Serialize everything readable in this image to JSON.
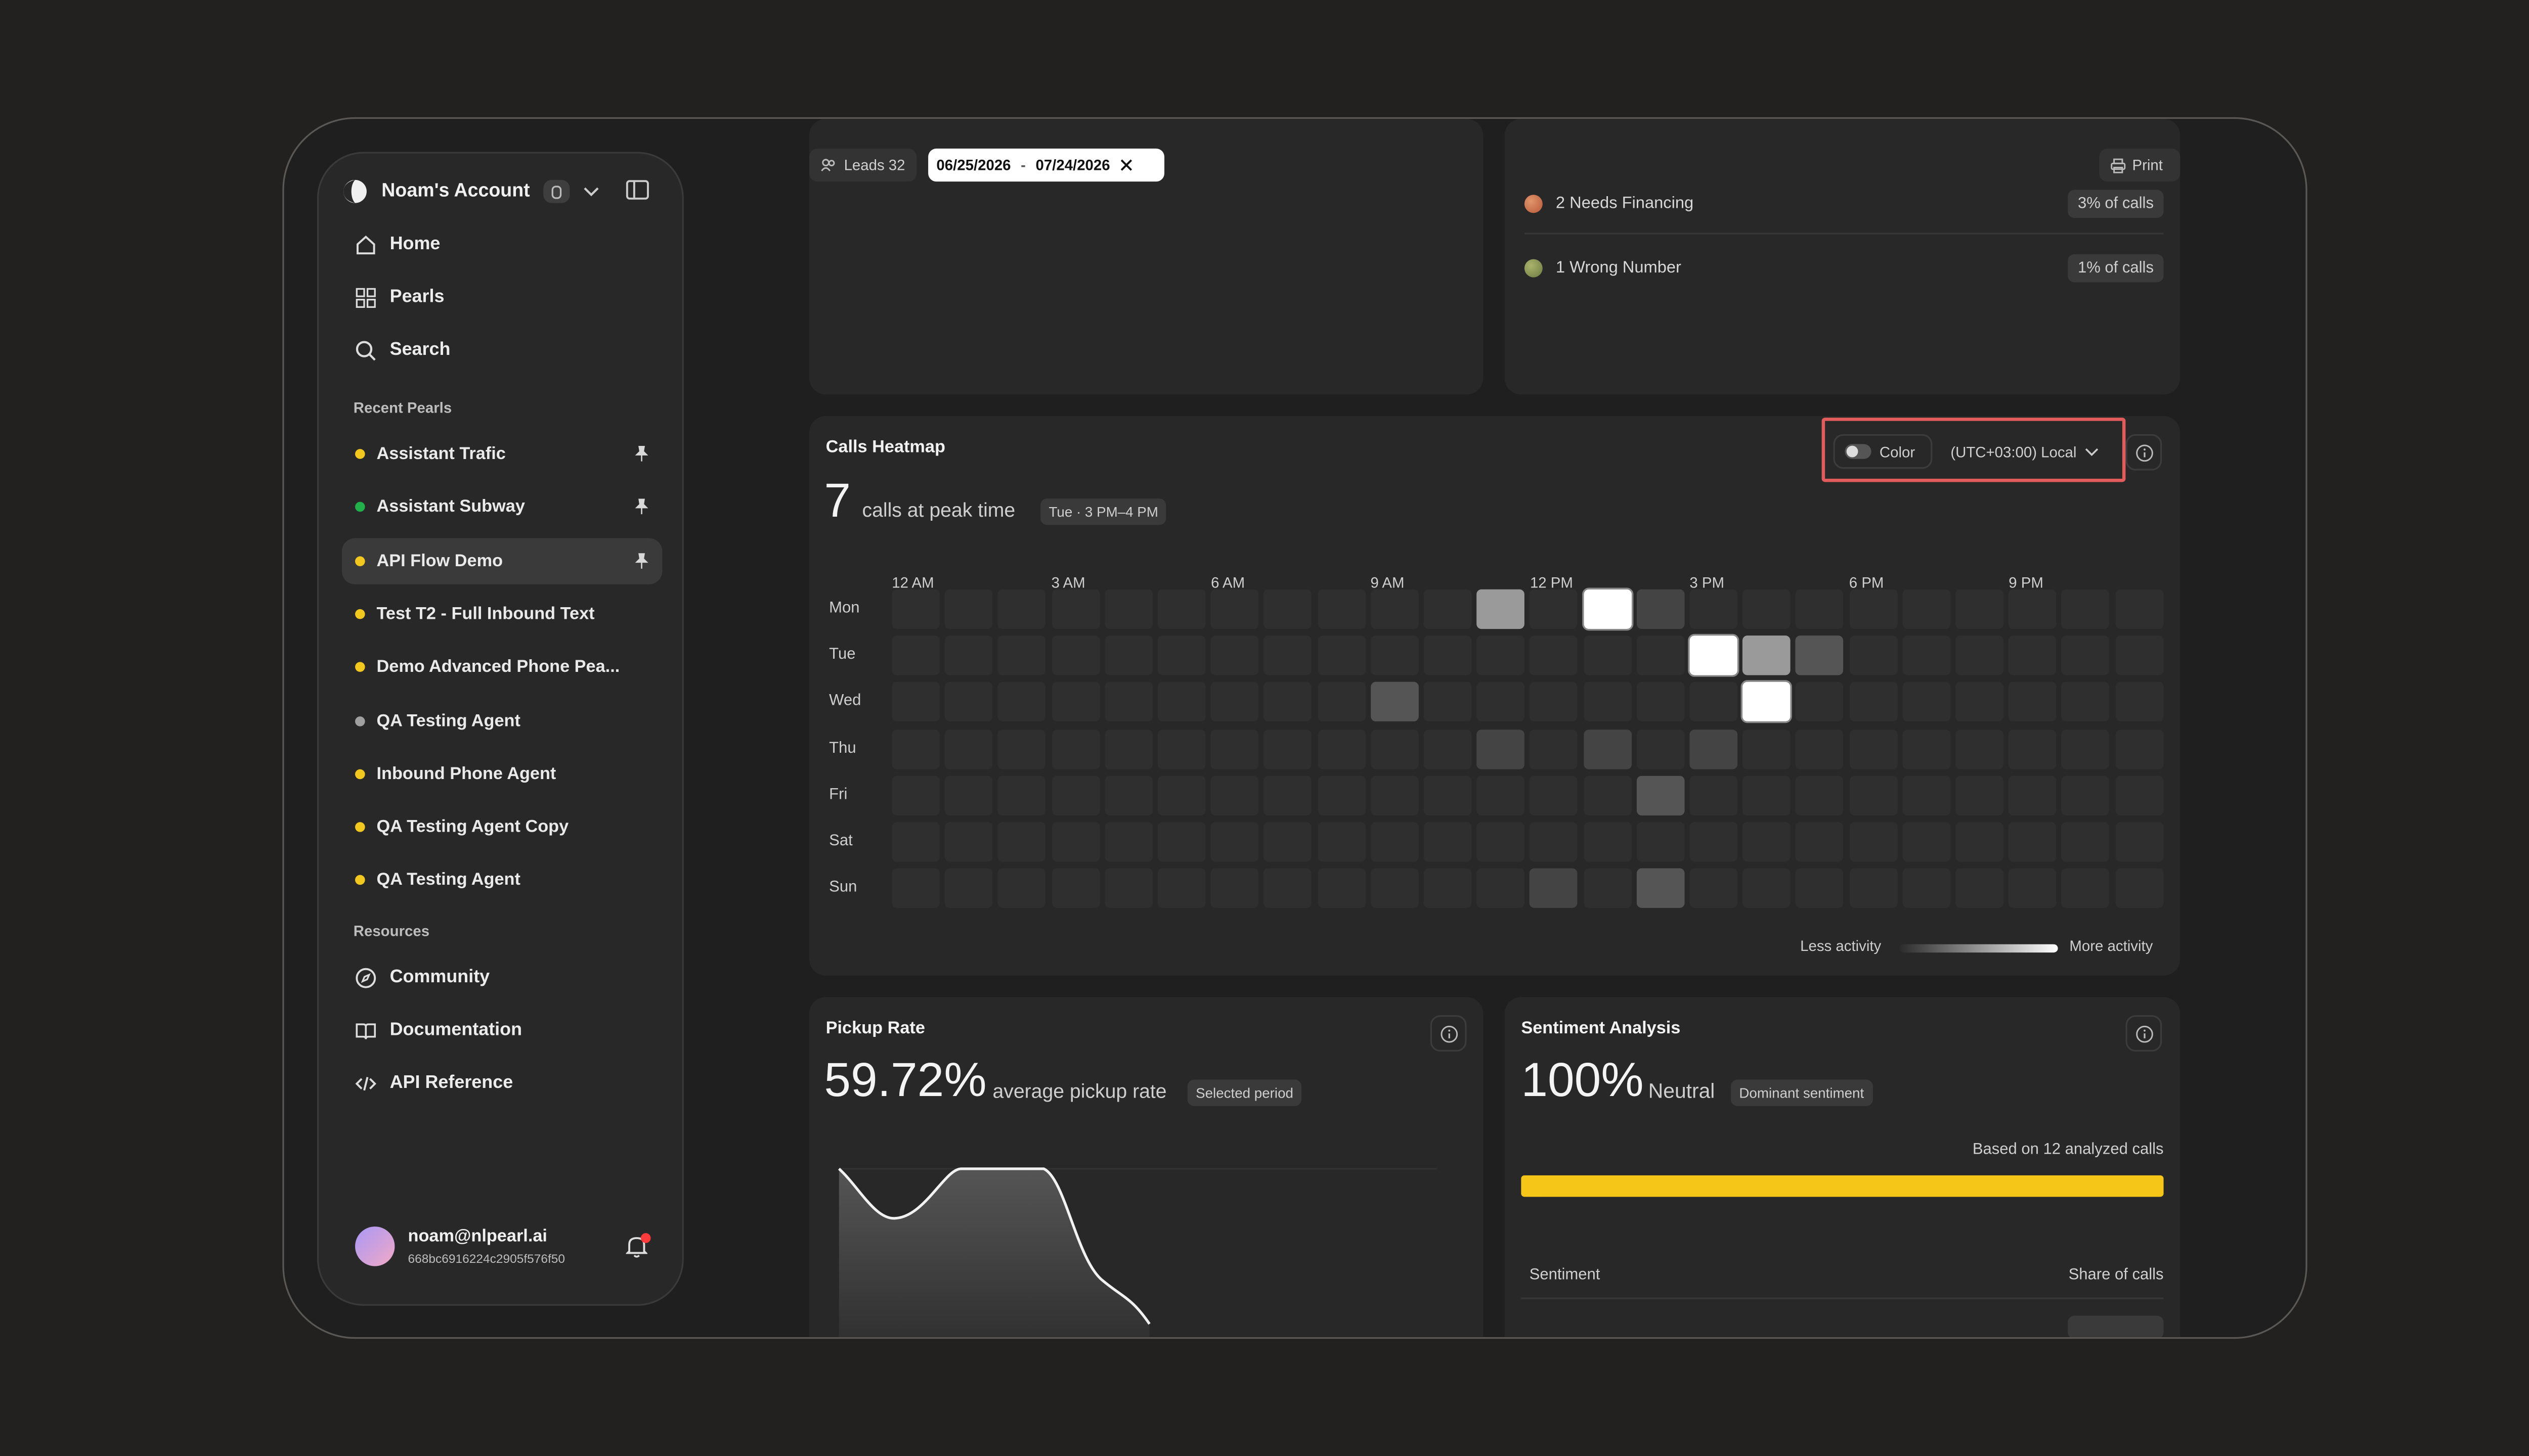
{
  "account": {
    "name": "Noam's Account"
  },
  "nav": [
    {
      "label": "Home",
      "icon": "home-icon"
    },
    {
      "label": "Pearls",
      "icon": "grid-icon"
    },
    {
      "label": "Search",
      "icon": "search-icon"
    }
  ],
  "recent_label": "Recent Pearls",
  "pearls": [
    {
      "label": "Assistant Trafic",
      "dot": "#f2c81f",
      "pinned": true
    },
    {
      "label": "Assistant Subway",
      "dot": "#22b04b",
      "pinned": true
    },
    {
      "label": "API Flow Demo",
      "dot": "#f2c81f",
      "pinned": true,
      "active": true
    },
    {
      "label": "Test T2 - Full Inbound Text",
      "dot": "#f2c81f"
    },
    {
      "label": "Demo Advanced Phone Pea...",
      "dot": "#f2c81f"
    },
    {
      "label": "QA Testing Agent",
      "dot": "#a0a0a0"
    },
    {
      "label": "Inbound Phone Agent",
      "dot": "#f2c81f"
    },
    {
      "label": "QA Testing Agent Copy",
      "dot": "#f2c81f"
    },
    {
      "label": "QA Testing Agent",
      "dot": "#f2c81f"
    }
  ],
  "resources_label": "Resources",
  "resources": [
    {
      "label": "Community",
      "icon": "compass-icon"
    },
    {
      "label": "Documentation",
      "icon": "book-icon"
    },
    {
      "label": "API Reference",
      "icon": "code-icon"
    }
  ],
  "user": {
    "email": "noam@nlpearl.ai",
    "id": "668bc6916224c2905f576f50"
  },
  "toolbar": {
    "leads_label": "Leads 32",
    "date_from": "06/25/2026",
    "date_sep": "-",
    "date_to": "07/24/2026",
    "print_label": "Print"
  },
  "outcomes": [
    {
      "label": "2 Needs Financing",
      "pct": "3% of calls",
      "color": "#d9774a"
    },
    {
      "label": "1 Wrong Number",
      "pct": "1% of calls",
      "color": "#8a9a5b"
    }
  ],
  "heatmap": {
    "title": "Calls Heatmap",
    "color_toggle_label": "Color",
    "timezone": "(UTC+03:00) Local",
    "peak_value": "7",
    "peak_text": "calls at peak time",
    "peak_tag": "Tue · 3 PM–4 PM",
    "hour_labels": [
      "12 AM",
      "3 AM",
      "6 AM",
      "9 AM",
      "12 PM",
      "3 PM",
      "6 PM",
      "9 PM"
    ],
    "days": [
      "Mon",
      "Tue",
      "Wed",
      "Thu",
      "Fri",
      "Sat",
      "Sun"
    ],
    "legend_less": "Less activity",
    "legend_more": "More activity",
    "levels": [
      [
        0,
        0,
        0,
        0,
        0,
        0,
        0,
        0,
        0,
        0,
        0,
        2,
        0,
        4,
        0.6,
        0,
        0,
        0,
        0,
        0,
        0,
        0,
        0,
        0
      ],
      [
        0,
        0,
        0,
        0,
        0,
        0,
        0,
        0,
        0,
        0,
        0,
        0,
        0,
        0,
        0,
        4,
        2,
        1,
        0,
        0,
        0,
        0,
        0,
        0
      ],
      [
        0,
        0,
        0,
        0,
        0,
        0,
        0,
        0,
        0,
        1,
        0,
        0,
        0,
        0,
        0,
        0,
        4,
        0,
        0,
        0,
        0,
        0,
        0,
        0
      ],
      [
        0,
        0,
        0,
        0,
        0,
        0,
        0,
        0,
        0,
        0,
        0,
        0.6,
        0,
        0.6,
        0,
        0.6,
        0,
        0,
        0,
        0,
        0,
        0,
        0,
        0
      ],
      [
        0,
        0,
        0,
        0,
        0,
        0,
        0,
        0,
        0,
        0,
        0,
        0,
        0,
        0,
        1,
        0,
        0,
        0,
        0,
        0,
        0,
        0,
        0,
        0
      ],
      [
        0,
        0,
        0,
        0,
        0,
        0,
        0,
        0,
        0,
        0,
        0,
        0,
        0,
        0,
        0,
        0,
        0,
        0,
        0,
        0,
        0,
        0,
        0,
        0
      ],
      [
        0,
        0,
        0,
        0,
        0,
        0,
        0,
        0,
        0,
        0,
        0,
        0,
        0.6,
        0,
        1,
        0,
        0,
        0,
        0,
        0,
        0,
        0,
        0,
        0
      ]
    ]
  },
  "pickup": {
    "title": "Pickup Rate",
    "value": "59.72%",
    "text": "average pickup rate",
    "tag": "Selected period"
  },
  "sentiment": {
    "title": "Sentiment Analysis",
    "value": "100%",
    "label": "Neutral",
    "tag": "Dominant sentiment",
    "based_on": "Based on 12 analyzed calls",
    "bar_color": "#f5c518",
    "col_sentiment": "Sentiment",
    "col_share": "Share of calls"
  }
}
